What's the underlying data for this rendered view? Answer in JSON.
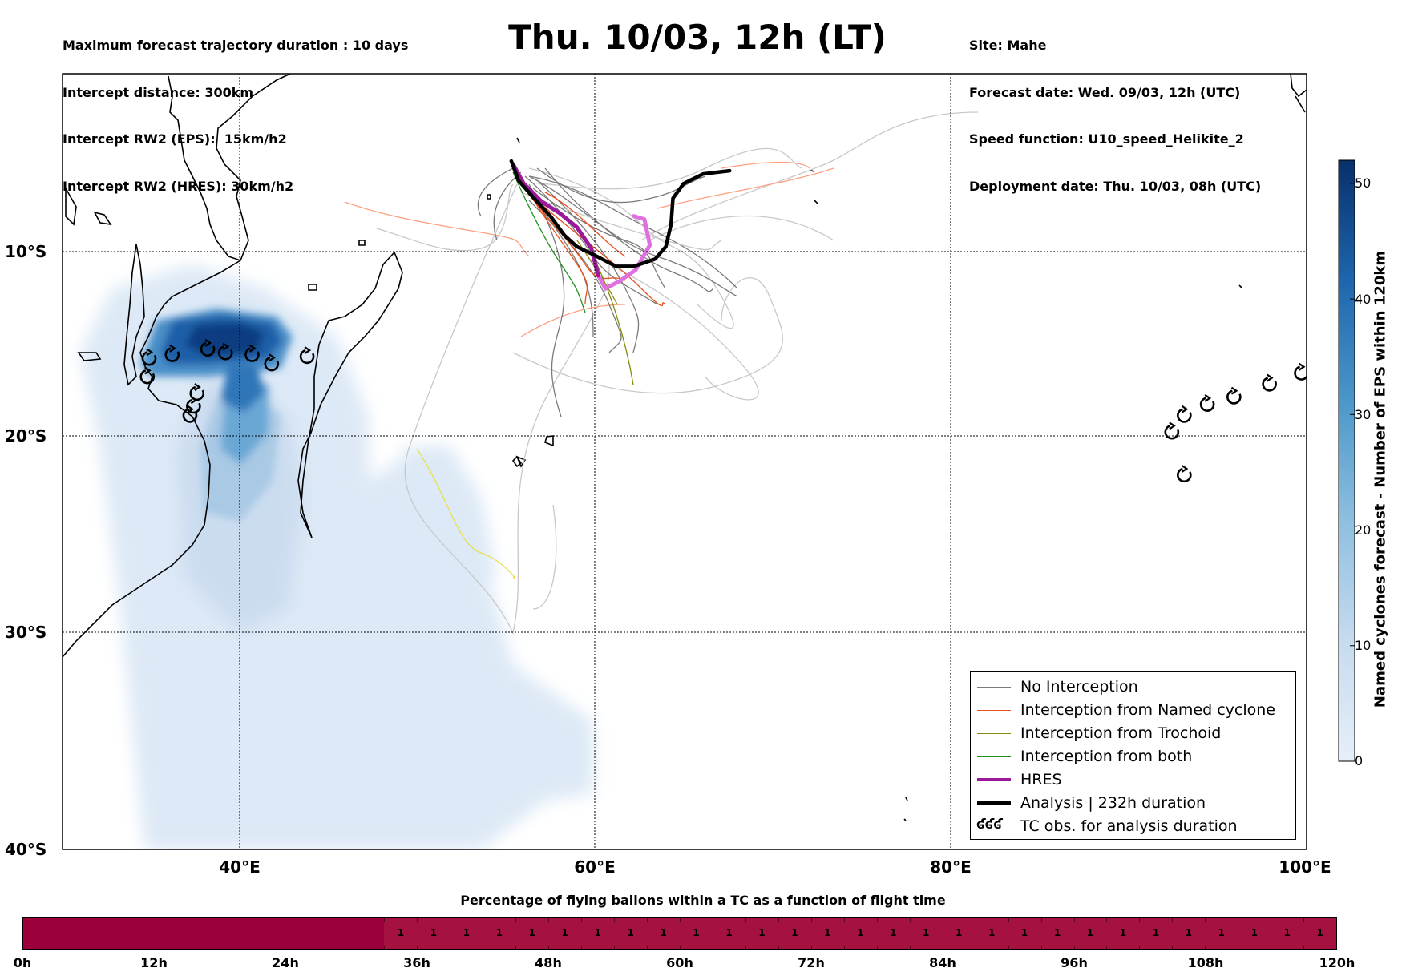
{
  "header": {
    "left_lines": [
      "Maximum forecast trajectory duration : 10 days",
      "Intercept distance: 300km",
      "Intercept RW2 (EPS):  15km/h2",
      "Intercept RW2 (HRES): 30km/h2"
    ],
    "title": "Thu. 10/03, 12h (LT)",
    "right_lines": [
      "Site: Mahe",
      "Forecast date: Wed. 09/03, 12h (UTC)",
      "Speed function: U10_speed_Helikite_2",
      "Deployment date: Thu. 10/03, 08h (UTC)"
    ]
  },
  "map": {
    "lon_range": [
      30,
      100
    ],
    "lat_range": [
      -40,
      1
    ],
    "lat_labels": [
      {
        "lat": -10,
        "text": "10°S"
      },
      {
        "lat": -20,
        "text": "20°S"
      },
      {
        "lat": -30,
        "text": "30°S"
      },
      {
        "lat": -40,
        "text": "40°S"
      }
    ],
    "lon_labels": [
      {
        "lon": 40,
        "text": "40°E"
      },
      {
        "lon": 60,
        "text": "60°E"
      },
      {
        "lon": 80,
        "text": "80°E"
      },
      {
        "lon": 100,
        "text": "100°E"
      }
    ],
    "colors": {
      "no_interception": "#7a7a7a",
      "named_cyclone": "#e8501e",
      "trochoid": "#8a8a10",
      "both": "#209020",
      "hres": "#9a1a9a",
      "hres_light": "#e070e0",
      "analysis": "#000000",
      "density_light": "#dde9f6",
      "density_dark": "#0b3c80"
    },
    "tc_obs": [
      [
        34.9,
        -15.8
      ],
      [
        36.2,
        -15.6
      ],
      [
        38.2,
        -15.3
      ],
      [
        39.2,
        -15.5
      ],
      [
        40.7,
        -15.6
      ],
      [
        41.8,
        -16.1
      ],
      [
        43.8,
        -15.7
      ],
      [
        34.8,
        -16.8
      ],
      [
        37.6,
        -17.7
      ],
      [
        37.4,
        -18.4
      ],
      [
        37.2,
        -18.9
      ],
      [
        92.5,
        -19.8
      ],
      [
        93.2,
        -18.9
      ],
      [
        94.5,
        -18.3
      ],
      [
        96.0,
        -17.9
      ],
      [
        98.0,
        -17.2
      ],
      [
        99.8,
        -16.6
      ],
      [
        93.2,
        -22.0
      ]
    ],
    "hres_track": [
      [
        55.4,
        -4.6
      ],
      [
        56,
        -5.8
      ],
      [
        57,
        -6.9
      ],
      [
        58,
        -7.6
      ],
      [
        59,
        -8.5
      ],
      [
        59.8,
        -9.8
      ],
      [
        60.2,
        -11.3
      ],
      [
        60.6,
        -12.0
      ],
      [
        61.4,
        -11.6
      ],
      [
        62.3,
        -11.0
      ],
      [
        63.1,
        -9.6
      ],
      [
        62.8,
        -8.0
      ],
      [
        62.2,
        -7.8
      ]
    ],
    "analysis_track": [
      [
        55.3,
        -4.4
      ],
      [
        55.7,
        -5.6
      ],
      [
        56.5,
        -6.6
      ],
      [
        57.5,
        -7.8
      ],
      [
        58.3,
        -9.0
      ],
      [
        59.0,
        -9.7
      ],
      [
        60.0,
        -10.2
      ],
      [
        61.2,
        -10.8
      ],
      [
        62.2,
        -10.8
      ],
      [
        63.4,
        -10.4
      ],
      [
        64.0,
        -9.7
      ],
      [
        64.3,
        -8.3
      ],
      [
        64.4,
        -6.7
      ],
      [
        65.0,
        -5.8
      ],
      [
        66.1,
        -5.2
      ],
      [
        67.6,
        -5.0
      ]
    ]
  },
  "colorbar": {
    "label": "Named cyclones forecast - Number of EPS within 120km",
    "min": 0,
    "max": 52,
    "ticks": [
      0,
      10,
      20,
      30,
      40,
      50
    ]
  },
  "legend": {
    "items": [
      {
        "label": "No Interception",
        "color": "#7a7a7a",
        "width": 1.5
      },
      {
        "label": "Interception from Named cyclone",
        "color": "#e8501e",
        "width": 1.5
      },
      {
        "label": "Interception from Trochoid",
        "color": "#8a8a10",
        "width": 1.5
      },
      {
        "label": "Interception from both",
        "color": "#209020",
        "width": 1.5
      },
      {
        "label": "HRES",
        "color": "#9a1a9a",
        "width": 4
      },
      {
        "label": "Analysis | 232h duration",
        "color": "#000000",
        "width": 4
      }
    ],
    "tc_obs_symbol": "ʛʛʛ",
    "tc_obs_label": "TC obs. for analysis duration"
  },
  "timeline": {
    "title": "Percentage of flying ballons within a TC as a function of flight time",
    "values": [
      0,
      0,
      0,
      0,
      0,
      0,
      0,
      0,
      0,
      0,
      0,
      1,
      1,
      1,
      1,
      1,
      1,
      1,
      1,
      1,
      1,
      1,
      1,
      1,
      1,
      1,
      1,
      1,
      1,
      1,
      1,
      1,
      1,
      1,
      1,
      1,
      1,
      1,
      1,
      1
    ],
    "colors": {
      "zero": "#9b003c",
      "one": "#a5123f"
    },
    "labels": [
      "0h",
      "12h",
      "24h",
      "36h",
      "48h",
      "60h",
      "72h",
      "84h",
      "96h",
      "108h",
      "120h"
    ]
  }
}
